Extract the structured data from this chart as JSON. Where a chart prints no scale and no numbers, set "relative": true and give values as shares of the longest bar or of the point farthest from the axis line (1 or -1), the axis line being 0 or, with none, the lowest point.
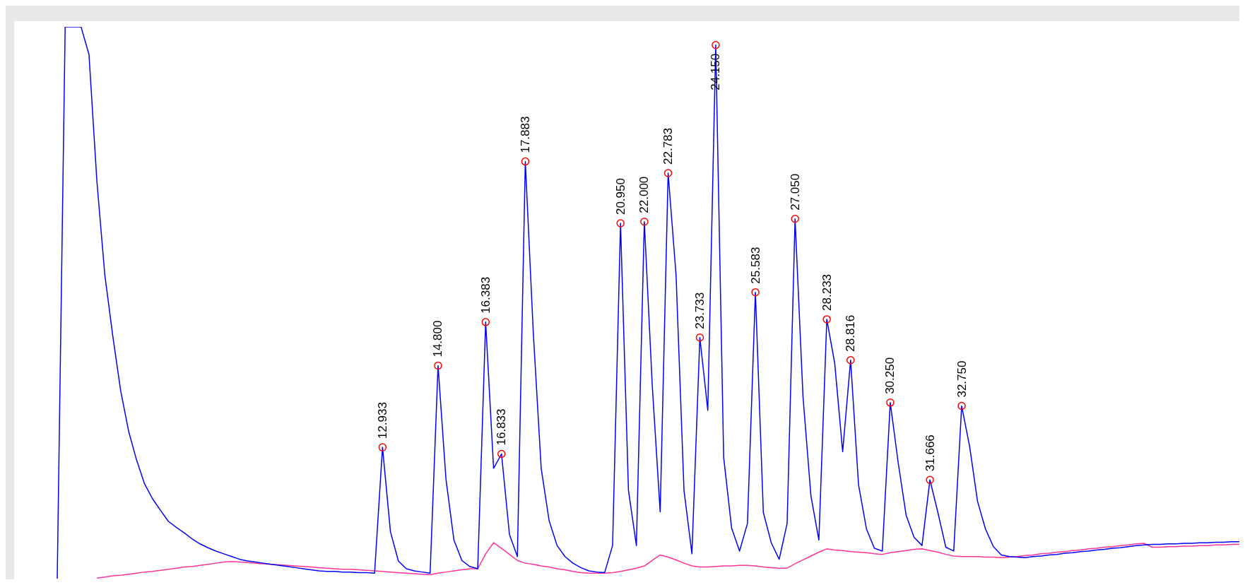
{
  "chart_data": {
    "type": "line",
    "relative": true,
    "categories": [
      null,
      null,
      null,
      null,
      null,
      null,
      null,
      null,
      null,
      null,
      null,
      null,
      null,
      null,
      null,
      null,
      null,
      null,
      null,
      null,
      null,
      null,
      null,
      null,
      null,
      null,
      null,
      null,
      null,
      null,
      null,
      null,
      null,
      null,
      null,
      null,
      null,
      null,
      null,
      null,
      null,
      null,
      null,
      null,
      null,
      null,
      null,
      null,
      null,
      null,
      null,
      null,
      null,
      null,
      null,
      null,
      null,
      null,
      null,
      null,
      null,
      null,
      null,
      null,
      null,
      null,
      null,
      null,
      null,
      null,
      null,
      null,
      null,
      null,
      null,
      null,
      null,
      null,
      null,
      null,
      null,
      null,
      null,
      null,
      null,
      null,
      null,
      null,
      null,
      null,
      null,
      null,
      null,
      null,
      null,
      null,
      null,
      null,
      null,
      null,
      null,
      null,
      null,
      null,
      null,
      null,
      null,
      null,
      null,
      null,
      null,
      null,
      null,
      null,
      null,
      null,
      null,
      null,
      null,
      null,
      null,
      null,
      null,
      null,
      null,
      null,
      null,
      null,
      null,
      null,
      null,
      null,
      null,
      null,
      null,
      null,
      null,
      null,
      null,
      null,
      null,
      null,
      null,
      null,
      null,
      null,
      null,
      null,
      null,
      null
    ],
    "series": [
      {
        "color": "#0000ff",
        "values": [
          0,
          1,
          1,
          1,
          0.95,
          0.72,
          0.55,
          0.44,
          0.34,
          0.267,
          0.215,
          0.172,
          0.145,
          0.124,
          0.104,
          0.093,
          0.083,
          0.072,
          0.063,
          0.056,
          0.05,
          0.045,
          0.04,
          0.035,
          0.032,
          0.03,
          0.028,
          0.026,
          0.024,
          0.022,
          0.02,
          0.018,
          0.016,
          0.014,
          0.013,
          0.013,
          0.012,
          0.012,
          0.011,
          0.011,
          0.01,
          0.238,
          0.085,
          0.032,
          0.018,
          0.014,
          0.012,
          0.01,
          0.386,
          0.18,
          0.07,
          0.033,
          0.022,
          0.018,
          0.465,
          0.2,
          0.226,
          0.08,
          0.04,
          0.756,
          0.447,
          0.2,
          0.105,
          0.06,
          0.04,
          0.028,
          0.02,
          0.014,
          0.012,
          0.011,
          0.06,
          0.644,
          0.16,
          0.06,
          0.647,
          0.35,
          0.121,
          0.735,
          0.55,
          0.16,
          0.045,
          0.437,
          0.305,
          0.967,
          0.22,
          0.092,
          0.05,
          0.1,
          0.519,
          0.12,
          0.065,
          0.035,
          0.1,
          0.652,
          0.33,
          0.15,
          0.07,
          0.47,
          0.39,
          0.23,
          0.396,
          0.17,
          0.09,
          0.055,
          0.05,
          0.319,
          0.21,
          0.115,
          0.075,
          0.06,
          0.179,
          0.12,
          0.057,
          0.05,
          0.313,
          0.24,
          0.14,
          0.09,
          0.058,
          0.043,
          0.04,
          0.039,
          0.038,
          0.04,
          0.041,
          0.043,
          0.044,
          0.046,
          0.047,
          0.049,
          0.05,
          0.052,
          0.053,
          0.055,
          0.056,
          0.058,
          0.06,
          0.061,
          0.062,
          0.062,
          0.063,
          0.063,
          0.064,
          0.064,
          0.065,
          0.065,
          0.066,
          0.066,
          0.067,
          0.067
        ]
      },
      {
        "color": "#ff3399",
        "values": [
          null,
          null,
          null,
          null,
          null,
          0.001,
          0.003,
          0.005,
          0.006,
          0.008,
          0.01,
          0.012,
          0.013,
          0.015,
          0.017,
          0.019,
          0.021,
          0.022,
          0.024,
          0.026,
          0.028,
          0.03,
          0.031,
          0.03,
          0.029,
          0.028,
          0.027,
          0.026,
          0.025,
          0.024,
          0.023,
          0.022,
          0.021,
          0.02,
          0.019,
          0.018,
          0.017,
          0.017,
          0.016,
          0.015,
          0.014,
          0.013,
          0.012,
          0.011,
          0.01,
          0.009,
          0.008,
          0.007,
          0.01,
          0.012,
          0.014,
          0.016,
          0.018,
          0.018,
          0.045,
          0.065,
          0.055,
          0.044,
          0.033,
          0.028,
          0.026,
          0.023,
          0.021,
          0.018,
          0.016,
          0.013,
          0.011,
          0.01,
          0.01,
          0.01,
          0.011,
          0.013,
          0.016,
          0.019,
          0.023,
          0.033,
          0.043,
          0.039,
          0.034,
          0.028,
          0.023,
          0.021,
          0.021,
          0.022,
          0.023,
          0.023,
          0.024,
          0.024,
          0.023,
          0.021,
          0.02,
          0.019,
          0.019,
          0.027,
          0.034,
          0.041,
          0.048,
          0.054,
          0.052,
          0.051,
          0.049,
          0.048,
          0.047,
          0.045,
          0.044,
          0.047,
          0.049,
          0.051,
          0.053,
          0.054,
          0.051,
          0.048,
          0.044,
          0.041,
          0.04,
          0.04,
          0.04,
          0.039,
          0.039,
          0.038,
          0.039,
          0.04,
          0.042,
          0.043,
          0.045,
          0.046,
          0.048,
          0.049,
          0.051,
          0.052,
          0.054,
          0.055,
          0.057,
          0.058,
          0.06,
          0.061,
          0.063,
          0.064,
          0.057,
          0.057,
          0.058,
          0.058,
          0.059,
          0.059,
          0.06,
          0.06,
          0.061,
          0.061,
          0.062,
          0.062
        ]
      }
    ],
    "annotations": [
      {
        "text": "12.933",
        "y": 0.238
      },
      {
        "text": "14.800",
        "y": 0.386
      },
      {
        "text": "16.383",
        "y": 0.465
      },
      {
        "text": "16.833",
        "y": 0.226
      },
      {
        "text": "17.883",
        "y": 0.756
      },
      {
        "text": "20.950",
        "y": 0.644
      },
      {
        "text": "22.000",
        "y": 0.647
      },
      {
        "text": "22.783",
        "y": 0.735
      },
      {
        "text": "23.733",
        "y": 0.437
      },
      {
        "text": "24.150",
        "y": 0.967
      },
      {
        "text": "25.583",
        "y": 0.519
      },
      {
        "text": "27.050",
        "y": 0.652
      },
      {
        "text": "28.233",
        "y": 0.47
      },
      {
        "text": "28.816",
        "y": 0.396
      },
      {
        "text": "30.250",
        "y": 0.319
      },
      {
        "text": "31.666",
        "y": 0.179
      },
      {
        "text": "32.750",
        "y": 0.313
      }
    ]
  }
}
